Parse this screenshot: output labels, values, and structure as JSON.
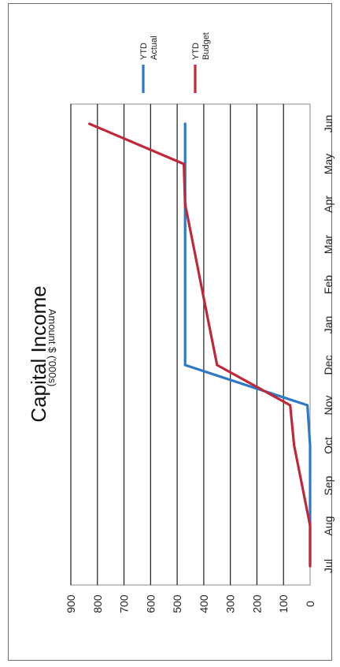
{
  "chart_data": {
    "type": "line",
    "title": "Capital Income",
    "ylabel": "Amount $ ('000s)",
    "xlabel": "",
    "categories": [
      "Jul",
      "Aug",
      "Sep",
      "Oct",
      "Nov",
      "Dec",
      "Jan",
      "Feb",
      "Mar",
      "Apr",
      "May",
      "Jun"
    ],
    "ylim": [
      0,
      900
    ],
    "yticks": [
      0,
      100,
      200,
      300,
      400,
      500,
      600,
      700,
      800,
      900
    ],
    "grid": true,
    "legend_position": "top-right",
    "series": [
      {
        "name": "YTD Actual",
        "color": "#2f78c4",
        "values": [
          0,
          0,
          0,
          0,
          10,
          470,
          470,
          470,
          470,
          470,
          470,
          470
        ]
      },
      {
        "name": "YTD Budget",
        "color": "#c0283a",
        "values": [
          0,
          0,
          30,
          60,
          75,
          350,
          380,
          410,
          440,
          470,
          475,
          830
        ]
      }
    ]
  }
}
